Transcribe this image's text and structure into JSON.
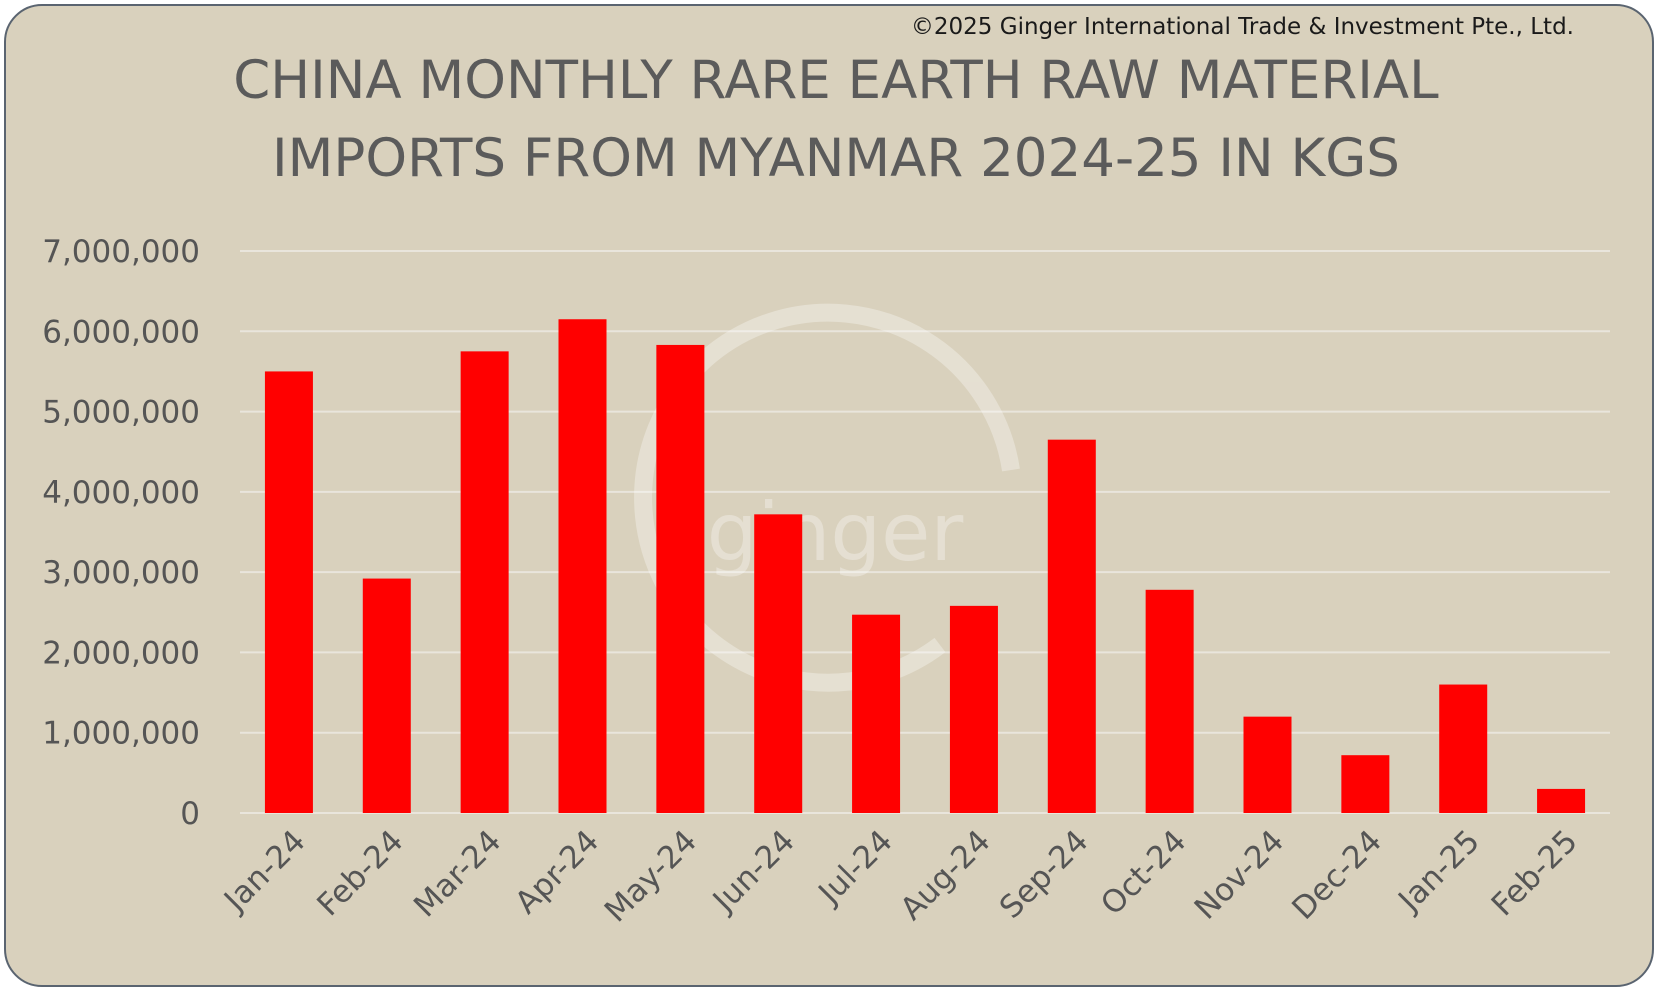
{
  "copyright": "©2025 Ginger International Trade & Investment Pte., Ltd.",
  "watermark_text": "ginger",
  "colors": {
    "background": "#d9d1bd",
    "bar": "#ff0000",
    "gridline": "#e9e5dc",
    "text": "#555555"
  },
  "chart_data": {
    "type": "bar",
    "title_line1": "CHINA MONTHLY RARE EARTH RAW MATERIAL",
    "title_line2": "IMPORTS FROM MYANMAR 2024-25 IN KGS",
    "xlabel": "",
    "ylabel": "",
    "ylim": [
      0,
      7000000
    ],
    "yticks": [
      0,
      1000000,
      2000000,
      3000000,
      4000000,
      5000000,
      6000000,
      7000000
    ],
    "ytick_labels": [
      "0",
      "1,000,000",
      "2,000,000",
      "3,000,000",
      "4,000,000",
      "5,000,000",
      "6,000,000",
      "7,000,000"
    ],
    "grid": true,
    "legend": "none",
    "categories": [
      "Jan-24",
      "Feb-24",
      "Mar-24",
      "Apr-24",
      "May-24",
      "Jun-24",
      "Jul-24",
      "Aug-24",
      "Sep-24",
      "Oct-24",
      "Nov-24",
      "Dec-24",
      "Jan-25",
      "Feb-25"
    ],
    "values": [
      5500000,
      2920000,
      5750000,
      6150000,
      5830000,
      3720000,
      2470000,
      2580000,
      4650000,
      2780000,
      1200000,
      720000,
      1600000,
      300000
    ]
  }
}
